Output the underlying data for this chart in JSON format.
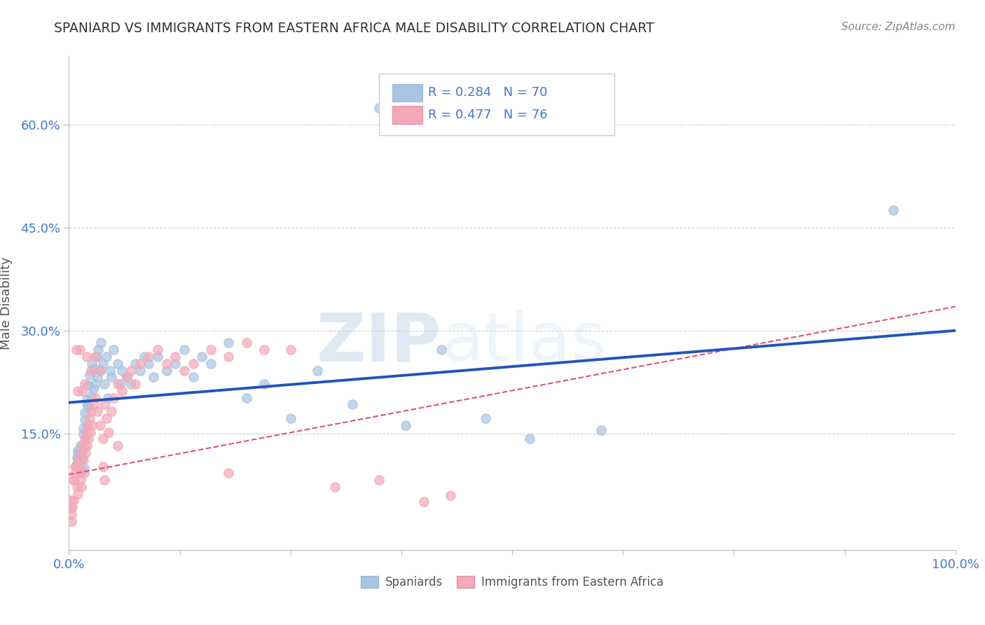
{
  "title": "SPANIARD VS IMMIGRANTS FROM EASTERN AFRICA MALE DISABILITY CORRELATION CHART",
  "source": "Source: ZipAtlas.com",
  "ylabel": "Male Disability",
  "xlim": [
    0.0,
    1.0
  ],
  "ylim": [
    -0.02,
    0.7
  ],
  "ytick_vals": [
    0.15,
    0.3,
    0.45,
    0.6
  ],
  "ytick_labels": [
    "15.0%",
    "30.0%",
    "45.0%",
    "60.0%"
  ],
  "xtick_vals": [
    0.0,
    0.125,
    0.25,
    0.375,
    0.5,
    0.625,
    0.75,
    0.875,
    1.0
  ],
  "xtick_labels": [
    "0.0%",
    "",
    "",
    "",
    "",
    "",
    "",
    "",
    "100.0%"
  ],
  "legend_r1": "R = 0.284",
  "legend_n1": "N = 70",
  "legend_r2": "R = 0.477",
  "legend_n2": "N = 76",
  "blue_color": "#a8c4e0",
  "pink_color": "#f4a8b8",
  "line_blue": "#2255bb",
  "line_pink": "#dd5577",
  "tick_color": "#4477cc",
  "grid_color": "#cccccc",
  "title_color": "#333333",
  "watermark_zip": "ZIP",
  "watermark_atlas": "atlas",
  "background_color": "#ffffff",
  "sp_x": [
    0.008,
    0.009,
    0.01,
    0.01,
    0.011,
    0.012,
    0.013,
    0.014,
    0.015,
    0.015,
    0.016,
    0.016,
    0.017,
    0.017,
    0.018,
    0.018,
    0.019,
    0.02,
    0.02,
    0.021,
    0.022,
    0.022,
    0.023,
    0.025,
    0.026,
    0.027,
    0.028,
    0.03,
    0.031,
    0.032,
    0.033,
    0.035,
    0.036,
    0.038,
    0.04,
    0.042,
    0.044,
    0.046,
    0.048,
    0.05,
    0.055,
    0.058,
    0.06,
    0.065,
    0.07,
    0.075,
    0.08,
    0.085,
    0.09,
    0.095,
    0.1,
    0.11,
    0.12,
    0.13,
    0.14,
    0.15,
    0.16,
    0.18,
    0.2,
    0.22,
    0.25,
    0.28,
    0.32,
    0.38,
    0.42,
    0.47,
    0.52,
    0.6,
    0.35,
    0.93
  ],
  "sp_y": [
    0.105,
    0.115,
    0.12,
    0.125,
    0.108,
    0.122,
    0.132,
    0.118,
    0.112,
    0.095,
    0.15,
    0.158,
    0.13,
    0.1,
    0.17,
    0.18,
    0.142,
    0.2,
    0.192,
    0.162,
    0.22,
    0.188,
    0.235,
    0.205,
    0.252,
    0.215,
    0.245,
    0.222,
    0.262,
    0.232,
    0.272,
    0.242,
    0.282,
    0.252,
    0.222,
    0.262,
    0.202,
    0.242,
    0.232,
    0.272,
    0.252,
    0.222,
    0.242,
    0.232,
    0.222,
    0.252,
    0.242,
    0.262,
    0.252,
    0.232,
    0.262,
    0.242,
    0.252,
    0.272,
    0.232,
    0.262,
    0.252,
    0.282,
    0.202,
    0.222,
    0.172,
    0.242,
    0.192,
    0.162,
    0.272,
    0.172,
    0.142,
    0.155,
    0.625,
    0.475
  ],
  "im_x": [
    0.005,
    0.007,
    0.008,
    0.009,
    0.01,
    0.01,
    0.011,
    0.012,
    0.013,
    0.014,
    0.015,
    0.015,
    0.016,
    0.017,
    0.018,
    0.019,
    0.02,
    0.02,
    0.021,
    0.022,
    0.023,
    0.024,
    0.025,
    0.026,
    0.028,
    0.03,
    0.032,
    0.035,
    0.038,
    0.04,
    0.042,
    0.045,
    0.048,
    0.05,
    0.055,
    0.06,
    0.065,
    0.07,
    0.075,
    0.08,
    0.09,
    0.1,
    0.11,
    0.12,
    0.13,
    0.14,
    0.16,
    0.18,
    0.2,
    0.22,
    0.012,
    0.015,
    0.018,
    0.02,
    0.025,
    0.03,
    0.035,
    0.01,
    0.008,
    0.007,
    0.006,
    0.005,
    0.004,
    0.003,
    0.003,
    0.002,
    0.002,
    0.04,
    0.25,
    0.3,
    0.35,
    0.038,
    0.055,
    0.18,
    0.4,
    0.43
  ],
  "im_y": [
    0.082,
    0.092,
    0.102,
    0.072,
    0.062,
    0.112,
    0.102,
    0.092,
    0.082,
    0.072,
    0.132,
    0.122,
    0.112,
    0.092,
    0.142,
    0.122,
    0.152,
    0.132,
    0.162,
    0.142,
    0.172,
    0.152,
    0.182,
    0.162,
    0.192,
    0.202,
    0.182,
    0.162,
    0.142,
    0.192,
    0.172,
    0.152,
    0.182,
    0.202,
    0.222,
    0.212,
    0.232,
    0.242,
    0.222,
    0.252,
    0.262,
    0.272,
    0.252,
    0.262,
    0.242,
    0.252,
    0.272,
    0.262,
    0.282,
    0.272,
    0.272,
    0.212,
    0.222,
    0.262,
    0.242,
    0.262,
    0.242,
    0.212,
    0.272,
    0.102,
    0.082,
    0.052,
    0.042,
    0.032,
    0.022,
    0.052,
    0.042,
    0.082,
    0.272,
    0.072,
    0.082,
    0.102,
    0.132,
    0.092,
    0.05,
    0.06
  ]
}
